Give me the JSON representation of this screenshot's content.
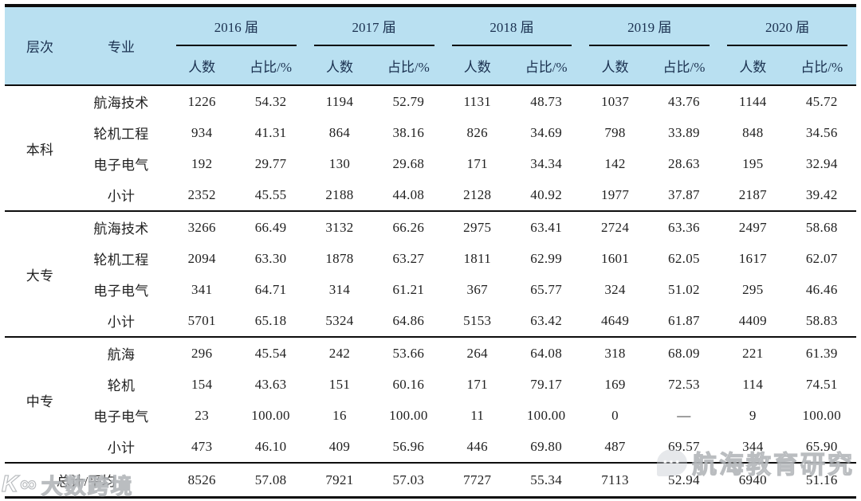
{
  "table": {
    "col_headers": {
      "level": "层次",
      "major": "专业",
      "count": "人数",
      "ratio": "占比/%"
    },
    "year_groups": [
      "2016 届",
      "2017 届",
      "2018 届",
      "2019 届",
      "2020 届"
    ],
    "sections": [
      {
        "level": "本科",
        "rows": [
          {
            "major": "航海技术",
            "values": [
              "1226",
              "54.32",
              "1194",
              "52.79",
              "1131",
              "48.73",
              "1037",
              "43.76",
              "1144",
              "45.72"
            ]
          },
          {
            "major": "轮机工程",
            "values": [
              "934",
              "41.31",
              "864",
              "38.16",
              "826",
              "34.69",
              "798",
              "33.89",
              "848",
              "34.56"
            ]
          },
          {
            "major": "电子电气",
            "values": [
              "192",
              "29.77",
              "130",
              "29.68",
              "171",
              "34.34",
              "142",
              "28.63",
              "195",
              "32.94"
            ]
          },
          {
            "major": "小计",
            "values": [
              "2352",
              "45.55",
              "2188",
              "44.08",
              "2128",
              "40.92",
              "1977",
              "37.87",
              "2187",
              "39.42"
            ]
          }
        ]
      },
      {
        "level": "大专",
        "rows": [
          {
            "major": "航海技术",
            "values": [
              "3266",
              "66.49",
              "3132",
              "66.26",
              "2975",
              "63.41",
              "2724",
              "63.36",
              "2497",
              "58.68"
            ]
          },
          {
            "major": "轮机工程",
            "values": [
              "2094",
              "63.30",
              "1878",
              "63.27",
              "1811",
              "62.99",
              "1601",
              "62.05",
              "1617",
              "62.07"
            ]
          },
          {
            "major": "电子电气",
            "values": [
              "341",
              "64.71",
              "314",
              "61.21",
              "367",
              "65.77",
              "324",
              "51.02",
              "295",
              "46.46"
            ]
          },
          {
            "major": "小计",
            "values": [
              "5701",
              "65.18",
              "5324",
              "64.86",
              "5153",
              "63.42",
              "4649",
              "61.87",
              "4409",
              "58.83"
            ]
          }
        ]
      },
      {
        "level": "中专",
        "rows": [
          {
            "major": "航海",
            "values": [
              "296",
              "45.54",
              "242",
              "53.66",
              "264",
              "64.08",
              "318",
              "68.09",
              "221",
              "61.39"
            ]
          },
          {
            "major": "轮机",
            "values": [
              "154",
              "43.63",
              "151",
              "60.16",
              "171",
              "79.17",
              "169",
              "72.53",
              "114",
              "74.51"
            ]
          },
          {
            "major": "电子电气",
            "values": [
              "23",
              "100.00",
              "16",
              "100.00",
              "11",
              "100.00",
              "0",
              "—",
              "9",
              "100.00"
            ]
          },
          {
            "major": "小计",
            "values": [
              "473",
              "46.10",
              "409",
              "56.96",
              "446",
              "69.80",
              "487",
              "69.57",
              "344",
              "65.90"
            ]
          }
        ]
      }
    ],
    "total_row": {
      "label": "总计/平均",
      "values": [
        "8526",
        "57.08",
        "7921",
        "57.03",
        "7727",
        "55.34",
        "7113",
        "52.94",
        "6940",
        "51.16"
      ]
    }
  },
  "watermarks": {
    "bottom_right": "航海教育研究",
    "bottom_left": "大数跨境",
    "logo_glyph": "K∞",
    "bubble_dots": "···"
  },
  "colors": {
    "header_bg": "#b9e0f1",
    "header_text": "#1b3150",
    "body_text": "#1f1f1f",
    "rule": "#0d0d0d"
  }
}
